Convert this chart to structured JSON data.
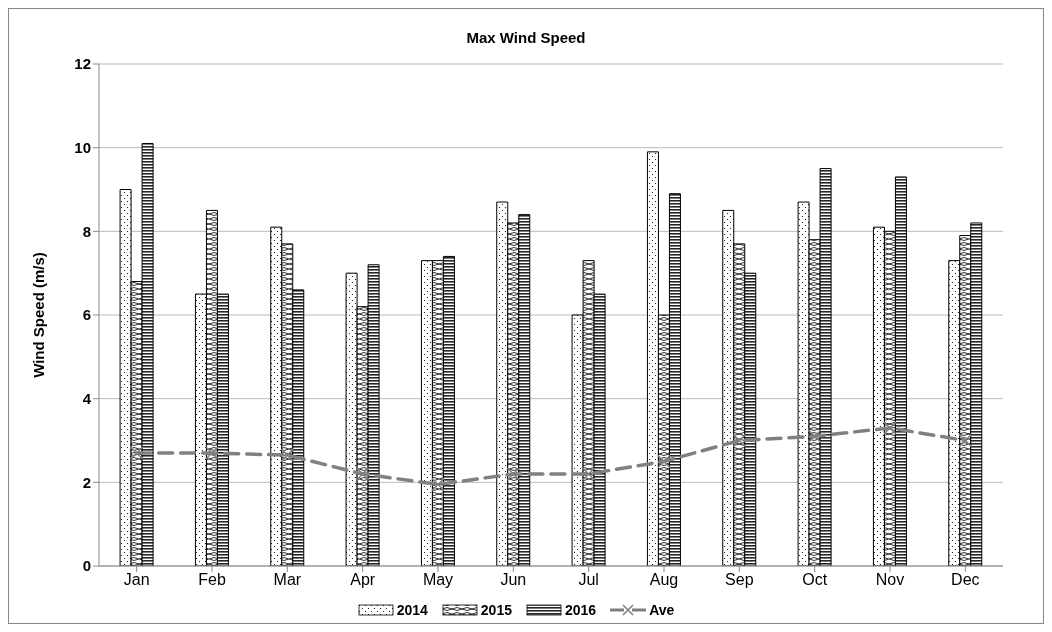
{
  "chart_data": {
    "type": "bar",
    "title": "Max Wind  Speed",
    "ylabel": "Wind Speed (m/s)",
    "categories": [
      "Jan",
      "Feb",
      "Mar",
      "Apr",
      "May",
      "Jun",
      "Jul",
      "Aug",
      "Sep",
      "Oct",
      "Nov",
      "Dec"
    ],
    "series": [
      {
        "name": "2014",
        "color": "#000000",
        "values": [
          9.0,
          6.5,
          8.1,
          7.0,
          7.3,
          8.7,
          6.0,
          9.9,
          8.5,
          8.7,
          8.1,
          7.3
        ]
      },
      {
        "name": "2015",
        "color": "#000000",
        "values": [
          6.8,
          8.5,
          7.7,
          6.2,
          7.3,
          8.2,
          7.3,
          6.0,
          7.7,
          7.8,
          8.0,
          7.9
        ]
      },
      {
        "name": "2016",
        "color": "#000000",
        "values": [
          10.1,
          6.5,
          6.6,
          7.2,
          7.4,
          8.4,
          6.5,
          8.9,
          7.0,
          9.5,
          9.3,
          8.2
        ]
      },
      {
        "name": "Ave",
        "type": "line",
        "color": "#808080",
        "marker": "cross",
        "line_style": "dashed",
        "values": [
          2.7,
          2.7,
          2.65,
          2.2,
          1.95,
          2.2,
          2.2,
          2.5,
          3.0,
          3.1,
          3.3,
          3.0
        ]
      }
    ],
    "ylim": [
      0,
      12
    ],
    "yticks": [
      0,
      2,
      4,
      6,
      8,
      10,
      12
    ],
    "grid": "y",
    "legend": "bottom"
  }
}
